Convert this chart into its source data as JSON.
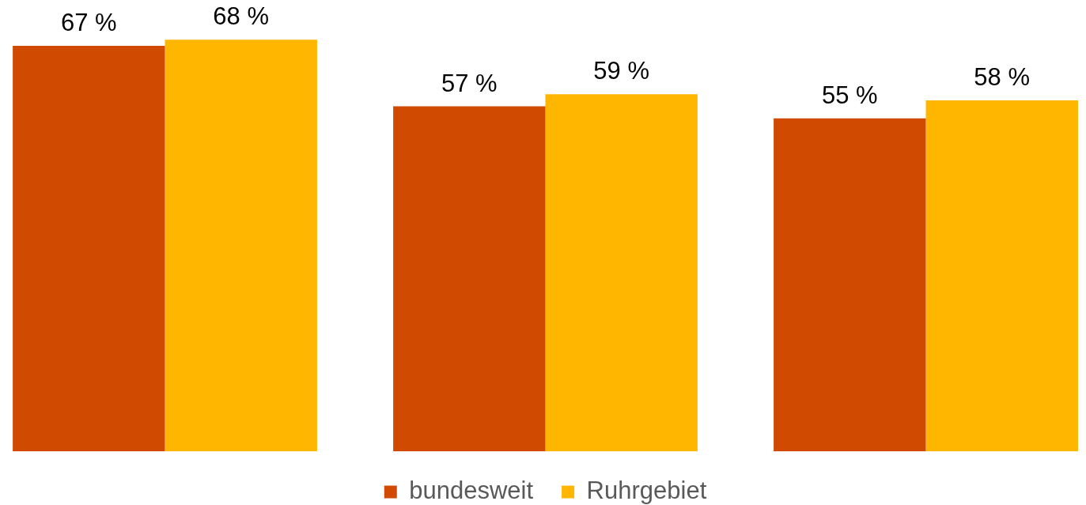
{
  "chart_data": {
    "type": "bar",
    "categories": [
      null,
      null,
      null
    ],
    "series": [
      {
        "name": "bundesweit",
        "color": "#d04a02",
        "values": [
          67,
          57,
          55
        ],
        "value_labels": [
          "67 %",
          "57 %",
          "55 %"
        ]
      },
      {
        "name": "Ruhrgebiet",
        "color": "#ffb600",
        "values": [
          68,
          59,
          58
        ],
        "value_labels": [
          "68 %",
          "59 %",
          "58 %"
        ]
      }
    ],
    "legend": "bottom"
  }
}
